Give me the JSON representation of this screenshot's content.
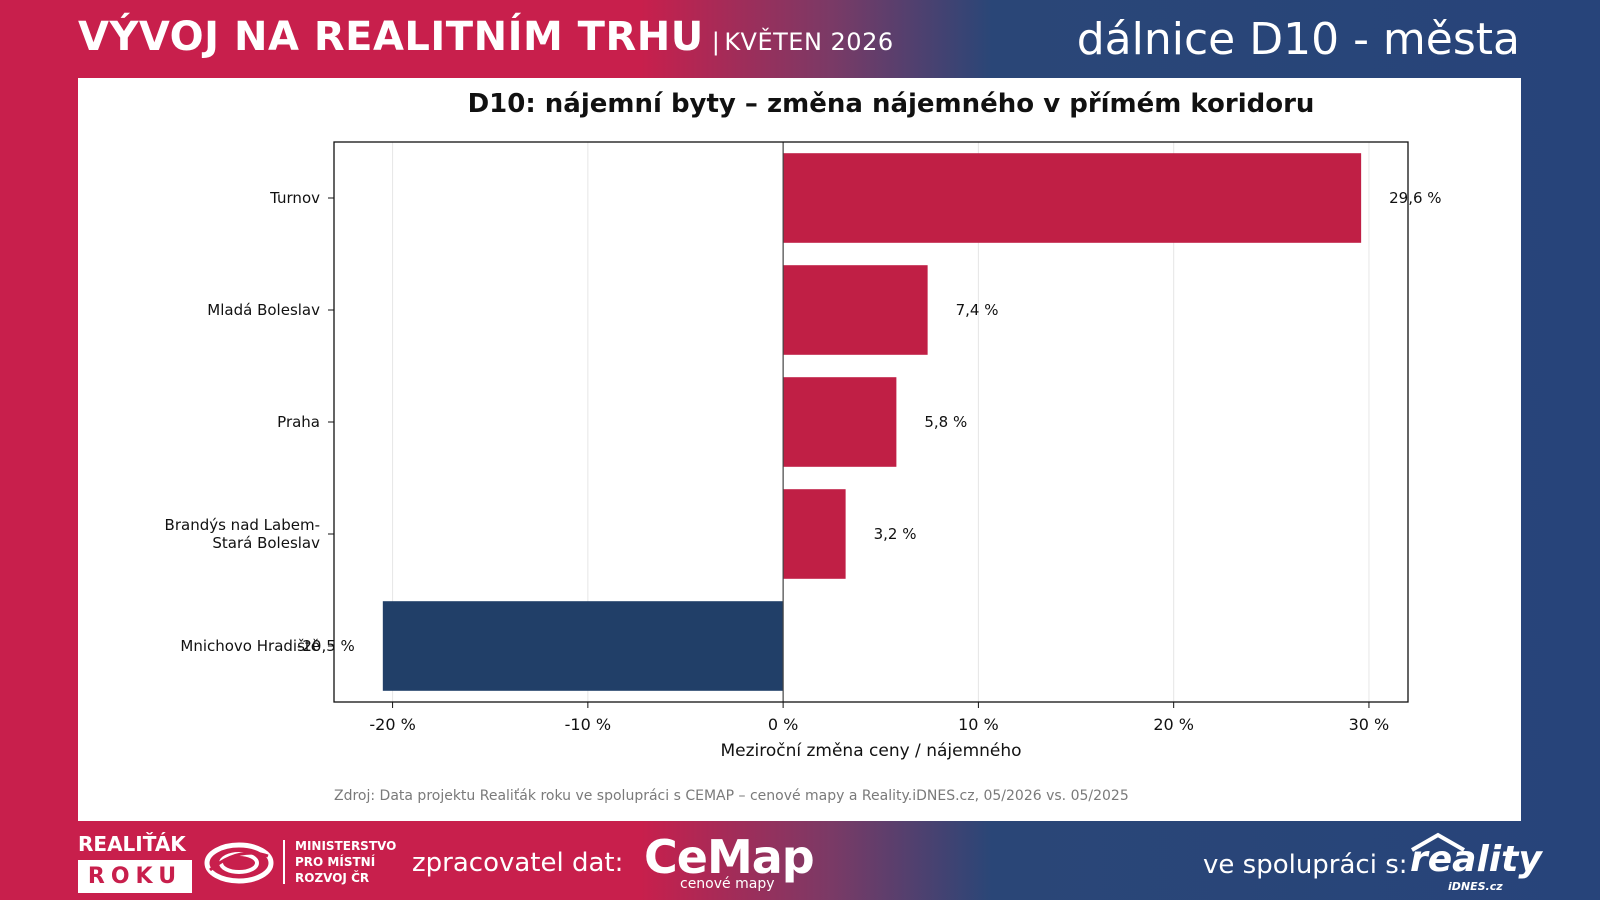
{
  "header": {
    "title": "VÝVOJ NA REALITNÍM TRHU",
    "separator": "|",
    "date": "KVĚTEN 2026",
    "region": "dálnice D10 - města"
  },
  "colors": {
    "positive": "#c01f45",
    "negative": "#213f68",
    "brand_red": "#c81f4c",
    "brand_blue": "#27447a"
  },
  "chart_data": {
    "type": "bar",
    "orientation": "horizontal",
    "title": "D10: nájemní byty – změna nájemného v přímém koridoru",
    "xlabel": "Meziroční změna ceny / nájemného",
    "ylabel": "",
    "xlim": [
      -23,
      32
    ],
    "xticks": [
      -20,
      -10,
      0,
      10,
      20,
      30
    ],
    "xtick_labels": [
      "-20 %",
      "-10 %",
      "0 %",
      "10 %",
      "20 %",
      "30 %"
    ],
    "grid": "vertical",
    "categories": [
      [
        "Turnov"
      ],
      [
        "Mladá Boleslav"
      ],
      [
        "Praha"
      ],
      [
        "Brandýs nad Labem-",
        "Stará Boleslav"
      ],
      [
        "Mnichovo Hradiště"
      ]
    ],
    "values": [
      29.6,
      7.4,
      5.8,
      3.2,
      -20.5
    ],
    "value_labels": [
      "29,6 %",
      "7,4 %",
      "5,8 %",
      "3,2 %",
      "-20,5 %"
    ]
  },
  "source": "Zdroj: Data projektu Realiťák roku ve spolupráci s CEMAP – cenové mapy a Reality.iDNES.cz, 05/2026 vs. 05/2025",
  "footer": {
    "logo_realitak": "REALIŤÁK",
    "logo_roku": "ROKU",
    "ministry_lines": [
      "MINISTERSTVO",
      "PRO MÍSTNÍ",
      "ROZVOJ ČR"
    ],
    "processor_label": "zpracovatel dat:",
    "cemap_logo": "CeMap",
    "cemap_sub": "cenové mapy",
    "partner_label": "ve spolupráci s:",
    "reality_logo": "reality",
    "reality_sub": "iDNES.cz"
  }
}
